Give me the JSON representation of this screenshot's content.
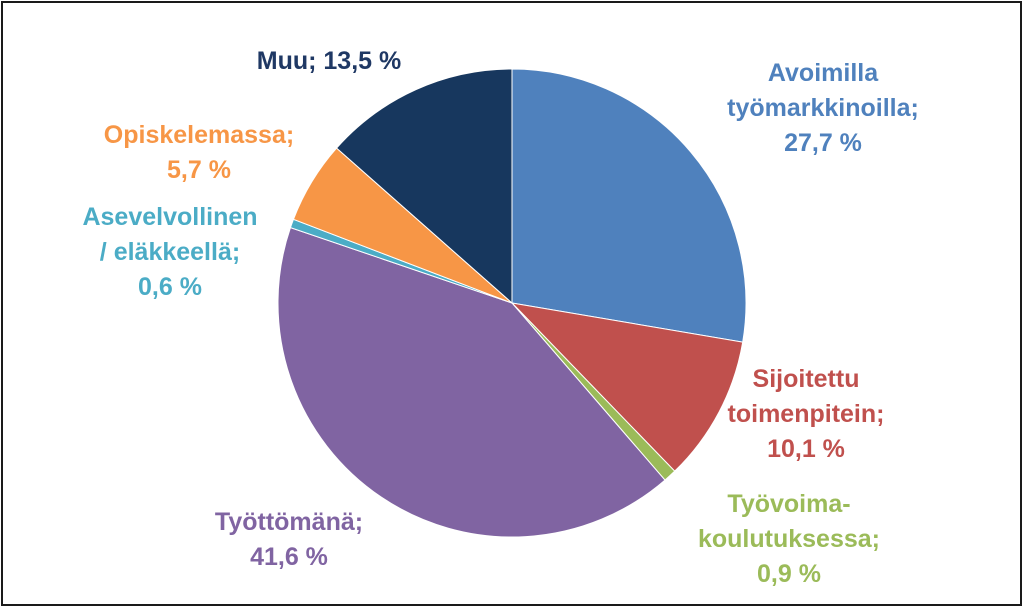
{
  "chart_data": {
    "type": "pie",
    "title": "",
    "start_angle_deg": 0,
    "direction": "clockwise",
    "slices": [
      {
        "label_lines": [
          "Avoimilla",
          "työmarkkinoilla;",
          "27,7 %"
        ],
        "value": 27.7,
        "color": "#4F81BD"
      },
      {
        "label_lines": [
          "Sijoitettu",
          "toimenpitein;",
          "10,1 %"
        ],
        "value": 10.1,
        "color": "#C0504D"
      },
      {
        "label_lines": [
          "Työvoima-",
          "koulutuksessa;",
          "0,9 %"
        ],
        "value": 0.9,
        "color": "#9BBB59"
      },
      {
        "label_lines": [
          "Työttömänä;",
          "41,6 %"
        ],
        "value": 41.6,
        "color": "#8064A2"
      },
      {
        "label_lines": [
          "Asevelvollinen",
          "/ eläkkeellä;",
          "0,6 %"
        ],
        "value": 0.6,
        "color": "#4BACC6"
      },
      {
        "label_lines": [
          "Opiskelemassa;",
          "5,7 %"
        ],
        "value": 5.7,
        "color": "#F79646"
      },
      {
        "label_lines": [
          "Muu; 13,5 %"
        ],
        "value": 13.5,
        "color": "#17375E"
      }
    ],
    "label_colors": [
      "#4F81BD",
      "#C0504D",
      "#9BBB59",
      "#8064A2",
      "#4BACC6",
      "#F79646",
      "#1F3864"
    ]
  }
}
